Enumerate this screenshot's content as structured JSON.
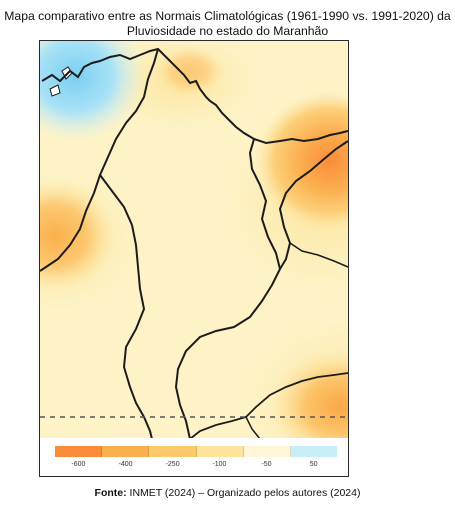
{
  "figure": {
    "title_line1": "Mapa comparativo entre as Normais Climatológicas (1961-1990 vs. 1991-2020) da",
    "title_line2": "Pluviosidade no estado do Maranhão",
    "source_label": "Fonte:",
    "source_text": "INMET (2024) – Organizado pelos autores (2024)"
  },
  "map": {
    "background_color": "#fdf3c6",
    "state_border_color": "#1c1c1c",
    "dashed_line_color": "#555555"
  },
  "legend": {
    "colors": [
      "#fb8c3a",
      "#fbb04d",
      "#fcca6a",
      "#fde49a",
      "#fef6d6",
      "#c8eef8"
    ],
    "labels": [
      "-600",
      "-400",
      "-250",
      "-100",
      "-50",
      "50"
    ]
  }
}
